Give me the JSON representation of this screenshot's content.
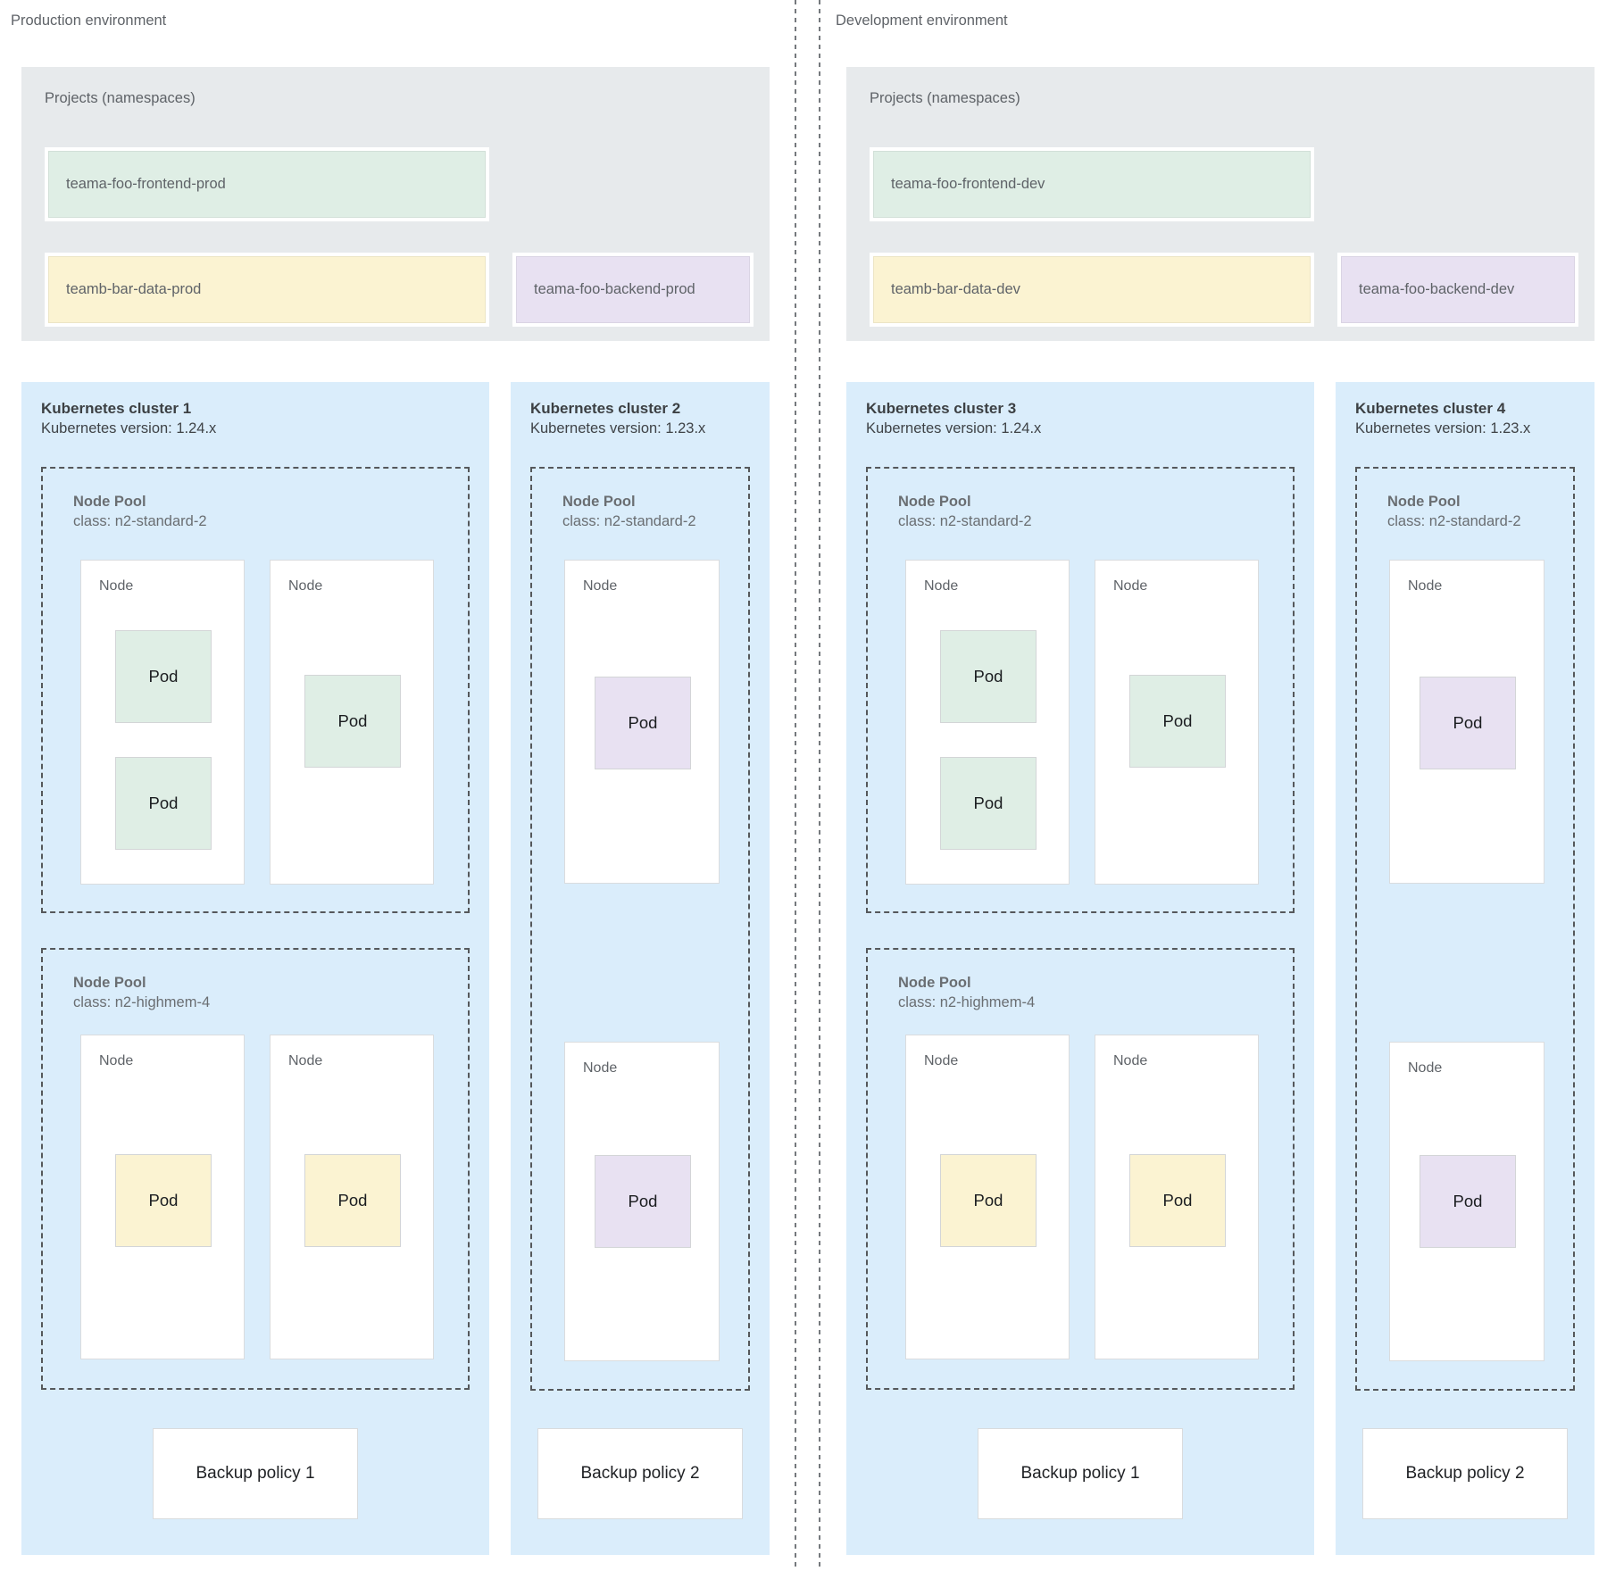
{
  "colors": {
    "cluster_background": "#daedfb",
    "projects_background": "#e7eaec",
    "frontend_fill": "#dfeee5",
    "data_fill": "#fbf3d2",
    "backend_fill": "#e8e1f2",
    "node_fill": "#ffffff",
    "pool_dashed_border": "#55585b",
    "divider_dashed": "#75797d"
  },
  "environments": [
    {
      "label": "Production environment",
      "projects": {
        "title": "Projects (namespaces)",
        "namespaces": [
          {
            "name": "teama-foo-frontend-prod",
            "tier": "frontend"
          },
          {
            "name": "teamb-bar-data-prod",
            "tier": "data"
          },
          {
            "name": "teama-foo-backend-prod",
            "tier": "backend"
          }
        ]
      },
      "clusters": [
        {
          "title": "Kubernetes cluster 1",
          "version": "Kubernetes version: 1.24.x",
          "node_pools": [
            {
              "label": "Node Pool",
              "class_line": "class: n2-standard-2",
              "nodes": [
                {
                  "label": "Node",
                  "pods": [
                    {
                      "label": "Pod",
                      "tier": "frontend"
                    },
                    {
                      "label": "Pod",
                      "tier": "frontend"
                    }
                  ]
                },
                {
                  "label": "Node",
                  "pods": [
                    {
                      "label": "Pod",
                      "tier": "frontend"
                    }
                  ]
                }
              ]
            },
            {
              "label": "Node Pool",
              "class_line": "class: n2-highmem-4",
              "nodes": [
                {
                  "label": "Node",
                  "pods": [
                    {
                      "label": "Pod",
                      "tier": "data"
                    }
                  ]
                },
                {
                  "label": "Node",
                  "pods": [
                    {
                      "label": "Pod",
                      "tier": "data"
                    }
                  ]
                }
              ]
            }
          ],
          "backup_policy": "Backup policy 1"
        },
        {
          "title": "Kubernetes cluster 2",
          "version": "Kubernetes version: 1.23.x",
          "node_pools": [
            {
              "label": "Node Pool",
              "class_line": "class: n2-standard-2",
              "nodes": [
                {
                  "label": "Node",
                  "pods": [
                    {
                      "label": "Pod",
                      "tier": "backend"
                    }
                  ]
                },
                {
                  "label": "Node",
                  "pods": [
                    {
                      "label": "Pod",
                      "tier": "backend"
                    }
                  ]
                }
              ]
            }
          ],
          "backup_policy": "Backup policy 2"
        }
      ]
    },
    {
      "label": "Development environment",
      "projects": {
        "title": "Projects (namespaces)",
        "namespaces": [
          {
            "name": "teama-foo-frontend-dev",
            "tier": "frontend"
          },
          {
            "name": "teamb-bar-data-dev",
            "tier": "data"
          },
          {
            "name": "teama-foo-backend-dev",
            "tier": "backend"
          }
        ]
      },
      "clusters": [
        {
          "title": "Kubernetes cluster 3",
          "version": "Kubernetes version: 1.24.x",
          "node_pools": [
            {
              "label": "Node Pool",
              "class_line": "class: n2-standard-2",
              "nodes": [
                {
                  "label": "Node",
                  "pods": [
                    {
                      "label": "Pod",
                      "tier": "frontend"
                    },
                    {
                      "label": "Pod",
                      "tier": "frontend"
                    }
                  ]
                },
                {
                  "label": "Node",
                  "pods": [
                    {
                      "label": "Pod",
                      "tier": "frontend"
                    }
                  ]
                }
              ]
            },
            {
              "label": "Node Pool",
              "class_line": "class: n2-highmem-4",
              "nodes": [
                {
                  "label": "Node",
                  "pods": [
                    {
                      "label": "Pod",
                      "tier": "data"
                    }
                  ]
                },
                {
                  "label": "Node",
                  "pods": [
                    {
                      "label": "Pod",
                      "tier": "data"
                    }
                  ]
                }
              ]
            }
          ],
          "backup_policy": "Backup policy 1"
        },
        {
          "title": "Kubernetes cluster 4",
          "version": "Kubernetes version: 1.23.x",
          "node_pools": [
            {
              "label": "Node Pool",
              "class_line": "class: n2-standard-2",
              "nodes": [
                {
                  "label": "Node",
                  "pods": [
                    {
                      "label": "Pod",
                      "tier": "backend"
                    }
                  ]
                },
                {
                  "label": "Node",
                  "pods": [
                    {
                      "label": "Pod",
                      "tier": "backend"
                    }
                  ]
                }
              ]
            }
          ],
          "backup_policy": "Backup policy 2"
        }
      ]
    }
  ]
}
